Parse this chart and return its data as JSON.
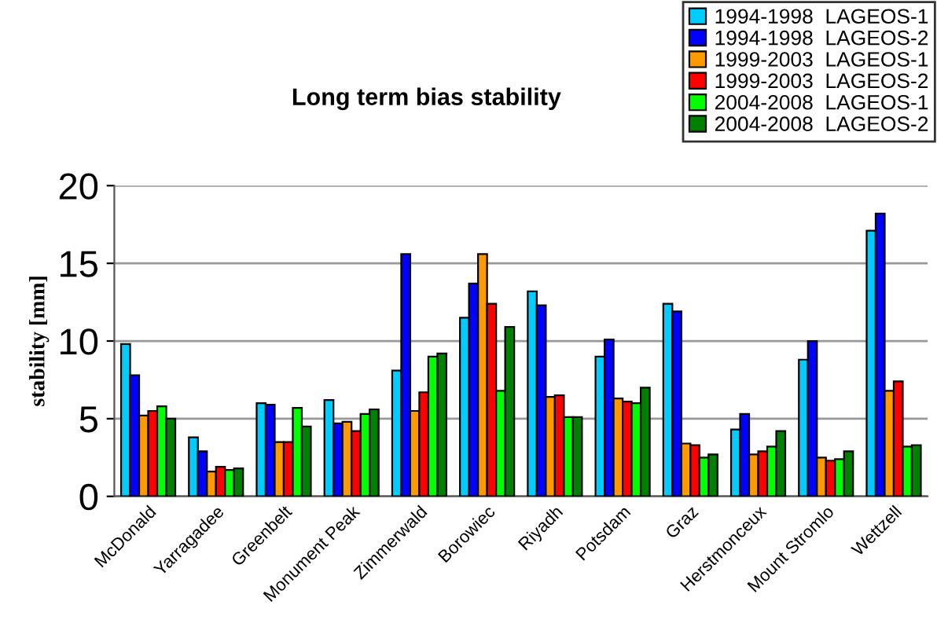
{
  "chart_data": {
    "type": "bar",
    "title": "Long term bias stability",
    "ylabel": "stability [mm]",
    "categories": [
      "McDonald",
      "Yarragadee",
      "Greenbelt",
      "Monument Peak",
      "Zimmerwald",
      "Borowiec",
      "Riyadh",
      "Potsdam",
      "Graz",
      "Herstmonceux",
      "Mount Stromlo",
      "Wettzell"
    ],
    "series": [
      {
        "name": "1994-1998  LAGEOS-1",
        "color": "#00ccff",
        "values": [
          9.8,
          3.8,
          6.0,
          6.2,
          8.1,
          11.5,
          13.2,
          9.0,
          12.4,
          4.3,
          8.8,
          17.1
        ]
      },
      {
        "name": "1994-1998  LAGEOS-2",
        "color": "#0000ff",
        "values": [
          7.8,
          2.9,
          5.9,
          4.7,
          15.6,
          13.7,
          12.3,
          10.1,
          11.9,
          5.3,
          10.0,
          18.2
        ]
      },
      {
        "name": "1999-2003  LAGEOS-1",
        "color": "#ff9900",
        "values": [
          5.2,
          1.6,
          3.5,
          4.8,
          5.5,
          15.6,
          6.4,
          6.3,
          3.4,
          2.7,
          2.5,
          6.8
        ]
      },
      {
        "name": "1999-2003  LAGEOS-2",
        "color": "#ff0000",
        "values": [
          5.5,
          1.9,
          3.5,
          4.2,
          6.7,
          12.4,
          6.5,
          6.1,
          3.3,
          2.9,
          2.3,
          7.4
        ]
      },
      {
        "name": "2004-2008  LAGEOS-1",
        "color": "#00ff00",
        "values": [
          5.8,
          1.7,
          5.7,
          5.3,
          9.0,
          6.8,
          5.1,
          6.0,
          2.5,
          3.2,
          2.4,
          3.2
        ]
      },
      {
        "name": "2004-2008  LAGEOS-2",
        "color": "#008000",
        "values": [
          5.0,
          1.8,
          4.5,
          5.6,
          9.2,
          10.9,
          5.1,
          7.0,
          2.7,
          4.2,
          2.9,
          3.3
        ]
      }
    ],
    "ylim": [
      0,
      20
    ],
    "yticks": [
      0,
      5,
      10,
      15,
      20
    ],
    "grid": "y",
    "legend": "top right"
  }
}
